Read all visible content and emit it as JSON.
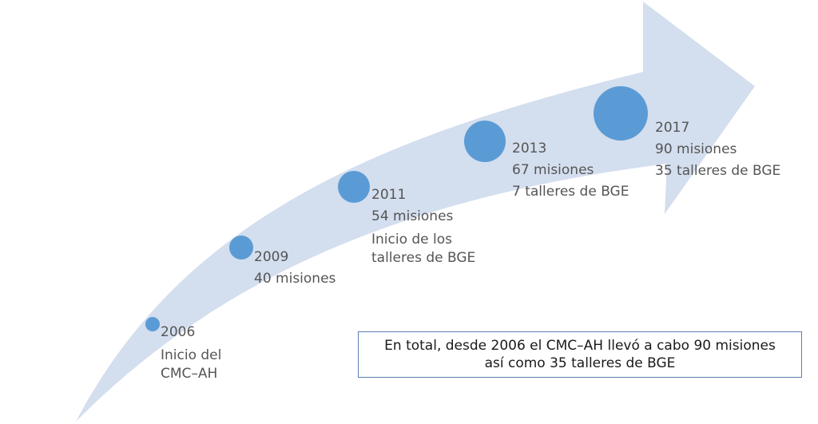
{
  "colors": {
    "arrow_fill": "#d3deee",
    "dot_fill": "#5b9bd5",
    "text": "#555555",
    "box_border": "#5b7fb0",
    "box_text": "#1a1a1a"
  },
  "milestones": [
    {
      "year": "2006",
      "lines": [
        "Inicio del",
        "CMC–AH"
      ]
    },
    {
      "year": "2009",
      "lines": [
        "40 misiones"
      ]
    },
    {
      "year": "2011",
      "lines": [
        "54 misiones",
        "Inicio de los\ntalleres de BGE"
      ]
    },
    {
      "year": "2013",
      "lines": [
        "67 misiones",
        "7 talleres de BGE"
      ]
    },
    {
      "year": "2017",
      "lines": [
        "90 misiones",
        "35 talleres de BGE"
      ]
    }
  ],
  "summary": {
    "line1": "En total, desde 2006 el CMC–AH llevó a cabo 90 misiones",
    "line2": "así como 35 talleres de BGE"
  }
}
